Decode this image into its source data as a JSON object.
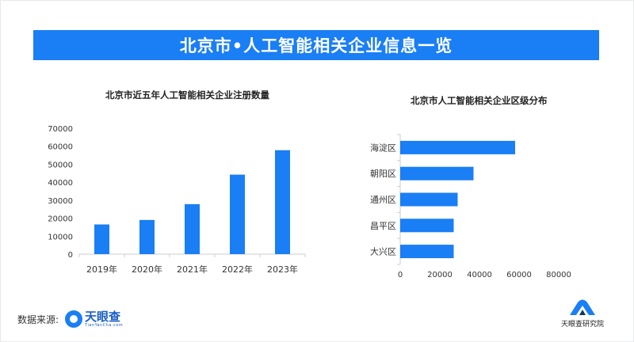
{
  "banner": {
    "title": "北京市•人工智能相关企业信息一览"
  },
  "footer": {
    "source_label": "数据来源:",
    "logo_name": "天眼查",
    "logo_sub": "TianYanCha.com",
    "institute_name": "天眼查研究院"
  },
  "colors": {
    "accent": "#1a7ef5",
    "bar": "#1a7ef5",
    "text": "#333333",
    "axis": "#cccccc"
  },
  "chart_data": [
    {
      "type": "bar",
      "orientation": "vertical",
      "title": "北京市近五年人工智能相关企业注册数量",
      "categories": [
        "2019年",
        "2020年",
        "2021年",
        "2022年",
        "2023年"
      ],
      "values": [
        16500,
        19000,
        27800,
        44200,
        57800
      ],
      "ylim": [
        0,
        70000
      ],
      "yticks": [
        0,
        10000,
        20000,
        30000,
        40000,
        50000,
        60000,
        70000
      ],
      "xlabel": "",
      "ylabel": "",
      "grid": false
    },
    {
      "type": "bar",
      "orientation": "horizontal",
      "title": "北京市人工智能相关企业区级分布",
      "categories": [
        "海淀区",
        "朝阳区",
        "通州区",
        "昌平区",
        "大兴区"
      ],
      "values": [
        58000,
        37000,
        29000,
        27000,
        27000
      ],
      "xlim": [
        0,
        80000
      ],
      "xticks": [
        0,
        20000,
        40000,
        60000,
        80000
      ],
      "xlabel": "",
      "ylabel": "",
      "grid": false
    }
  ]
}
